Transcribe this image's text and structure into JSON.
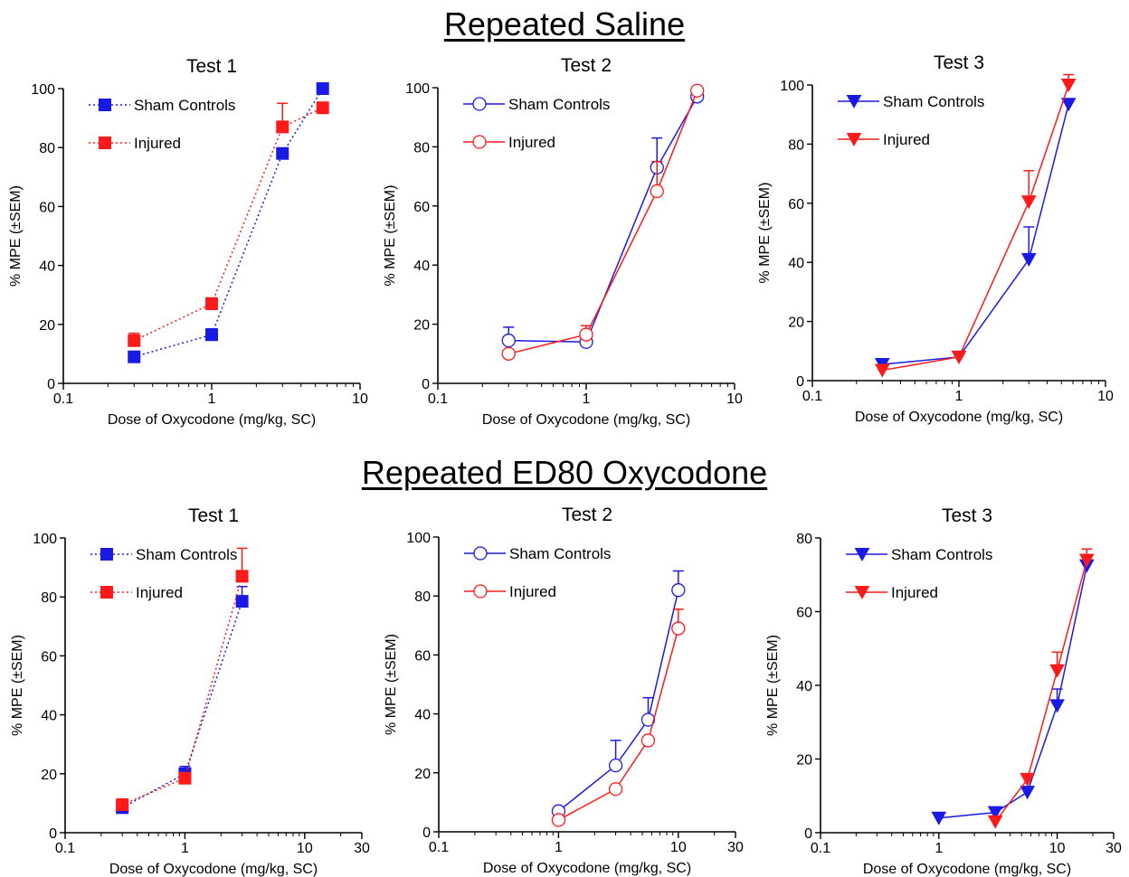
{
  "sections": [
    {
      "title": "Repeated Saline"
    },
    {
      "title": "Repeated ED80 Oxycodone"
    }
  ],
  "colors": {
    "sham": "#1a1ae6",
    "injured": "#ff1a1a"
  },
  "chart_data": [
    {
      "type": "scatter",
      "title": "Test 1",
      "xlabel": "Dose of Oxycodone (mg/kg, SC)",
      "ylabel": "% MPE (±SEM)",
      "xscale": "log",
      "xlim": [
        0.1,
        10
      ],
      "xticks": [
        0.1,
        1,
        10
      ],
      "xtick_labels": [
        "0.1",
        "1",
        "10"
      ],
      "ylim": [
        0,
        100
      ],
      "yticks": [
        0,
        20,
        40,
        60,
        80,
        100
      ],
      "marker": "square",
      "marker_fill": "filled",
      "line": "dotted",
      "legend": "top-left",
      "series": [
        {
          "name": "Sham Controls",
          "key": "sham",
          "x": [
            0.3,
            1,
            3,
            5.6
          ],
          "y": [
            9,
            16.5,
            78,
            100
          ],
          "err": [
            1.5,
            2,
            0,
            0
          ]
        },
        {
          "name": "Injured",
          "key": "injured",
          "x": [
            0.3,
            1,
            3,
            5.6
          ],
          "y": [
            14.5,
            27,
            87,
            93.5
          ],
          "err": [
            2.5,
            2,
            8,
            0
          ]
        }
      ]
    },
    {
      "type": "scatter",
      "title": "Test 2",
      "xlabel": "Dose of Oxycodone (mg/kg, SC)",
      "ylabel": "% MPE (±SEM)",
      "xscale": "log",
      "xlim": [
        0.1,
        10
      ],
      "xticks": [
        0.1,
        1,
        10
      ],
      "xtick_labels": [
        "0.1",
        "1",
        "10"
      ],
      "ylim": [
        0,
        100
      ],
      "yticks": [
        0,
        20,
        40,
        60,
        80,
        100
      ],
      "marker": "circle",
      "marker_fill": "open",
      "line": "solid",
      "legend": "top-left",
      "series": [
        {
          "name": "Sham Controls",
          "key": "sham",
          "x": [
            0.3,
            1,
            3,
            5.6
          ],
          "y": [
            14.5,
            14,
            73,
            97
          ],
          "err": [
            4.5,
            0,
            10,
            0
          ]
        },
        {
          "name": "Injured",
          "key": "injured",
          "x": [
            0.3,
            1,
            3,
            5.6
          ],
          "y": [
            10,
            16.5,
            65,
            99
          ],
          "err": [
            0,
            3,
            10,
            0
          ]
        }
      ]
    },
    {
      "type": "scatter",
      "title": "Test 3",
      "xlabel": "Dose of Oxycodone (mg/kg, SC)",
      "ylabel": "% MPE (±SEM)",
      "xscale": "log",
      "xlim": [
        0.1,
        10
      ],
      "xticks": [
        0.1,
        1,
        10
      ],
      "xtick_labels": [
        "0.1",
        "1",
        "10"
      ],
      "ylim": [
        0,
        100
      ],
      "yticks": [
        0,
        20,
        40,
        60,
        80,
        100
      ],
      "marker": "triangle-down",
      "marker_fill": "filled",
      "line": "solid",
      "legend": "top-left",
      "series": [
        {
          "name": "Sham Controls",
          "key": "sham",
          "x": [
            0.3,
            1,
            3,
            5.6
          ],
          "y": [
            5.5,
            8,
            41,
            93.5
          ],
          "err": [
            0,
            0,
            11,
            0
          ]
        },
        {
          "name": "Injured",
          "key": "injured",
          "x": [
            0.3,
            1,
            3,
            5.6
          ],
          "y": [
            3.5,
            8,
            60.5,
            100
          ],
          "err": [
            0,
            0,
            10.5,
            3.5
          ]
        }
      ]
    },
    {
      "type": "scatter",
      "title": "Test 1",
      "xlabel": "Dose of Oxycodone (mg/kg, SC)",
      "ylabel": "% MPE (±SEM)",
      "xscale": "log",
      "xlim": [
        0.1,
        30
      ],
      "xticks": [
        0.1,
        1,
        10,
        30
      ],
      "xtick_labels": [
        "0.1",
        "1",
        "10",
        "30"
      ],
      "ylim": [
        0,
        100
      ],
      "yticks": [
        0,
        20,
        40,
        60,
        80,
        100
      ],
      "marker": "square",
      "marker_fill": "filled",
      "line": "dotted",
      "legend": "top-left",
      "series": [
        {
          "name": "Sham Controls",
          "key": "sham",
          "x": [
            0.3,
            1,
            3
          ],
          "y": [
            8.5,
            20,
            78.5
          ],
          "err": [
            0,
            2.5,
            5
          ]
        },
        {
          "name": "Injured",
          "key": "injured",
          "x": [
            0.3,
            1,
            3
          ],
          "y": [
            9.5,
            18.5,
            87
          ],
          "err": [
            1.5,
            0,
            9.5
          ]
        }
      ]
    },
    {
      "type": "scatter",
      "title": "Test 2",
      "xlabel": "Dose of Oxycodone (mg/kg, SC)",
      "ylabel": "% MPE (±SEM)",
      "xscale": "log",
      "xlim": [
        0.1,
        30
      ],
      "xticks": [
        0.1,
        1,
        10,
        30
      ],
      "xtick_labels": [
        "0.1",
        "1",
        "10",
        "30"
      ],
      "ylim": [
        0,
        100
      ],
      "yticks": [
        0,
        20,
        40,
        60,
        80,
        100
      ],
      "marker": "circle",
      "marker_fill": "open",
      "line": "solid",
      "legend": "top-left",
      "series": [
        {
          "name": "Sham Controls",
          "key": "sham",
          "x": [
            1,
            3,
            5.6,
            10
          ],
          "y": [
            7,
            22.5,
            38,
            82
          ],
          "err": [
            0,
            8.5,
            7.5,
            6.5
          ]
        },
        {
          "name": "Injured",
          "key": "injured",
          "x": [
            1,
            3,
            5.6,
            10
          ],
          "y": [
            4,
            14.5,
            31,
            69
          ],
          "err": [
            0,
            0,
            0,
            6.5
          ]
        }
      ]
    },
    {
      "type": "scatter",
      "title": "Test 3",
      "xlabel": "Dose of Oxycodone (mg/kg, SC)",
      "ylabel": "% MPE (±SEM)",
      "xscale": "log",
      "xlim": [
        0.1,
        30
      ],
      "xticks": [
        0.1,
        1,
        10,
        30
      ],
      "xtick_labels": [
        "0.1",
        "1",
        "10",
        "30"
      ],
      "ylim": [
        0,
        80
      ],
      "yticks": [
        0,
        20,
        40,
        60,
        80
      ],
      "marker": "triangle-down",
      "marker_fill": "filled",
      "line": "solid",
      "legend": "top-left",
      "series": [
        {
          "name": "Sham Controls",
          "key": "sham",
          "x": [
            1,
            3,
            5.6,
            10,
            17.8
          ],
          "y": [
            4,
            5.5,
            11,
            34.5,
            72.5
          ],
          "err": [
            0,
            0,
            1.5,
            4.5,
            3
          ]
        },
        {
          "name": "Injured",
          "key": "injured",
          "x": [
            3,
            5.6,
            10,
            17.8
          ],
          "y": [
            3,
            14.5,
            44,
            74
          ],
          "err": [
            0,
            1.5,
            5,
            3
          ]
        }
      ]
    }
  ]
}
